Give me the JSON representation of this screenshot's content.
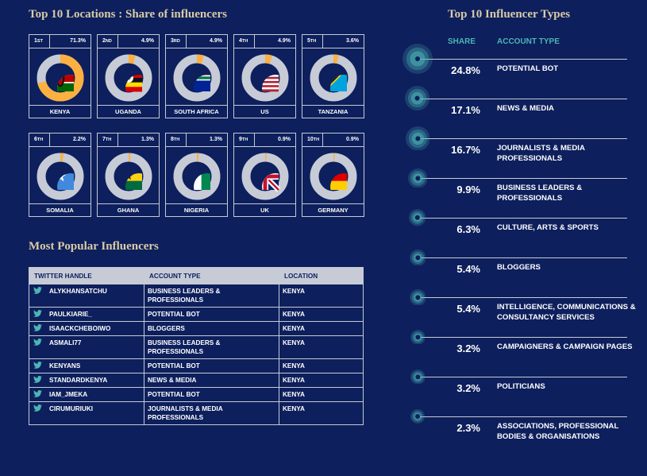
{
  "locations": {
    "title": "Top 10 Locations : Share of influencers",
    "items": [
      {
        "rank": "1",
        "suffix": "ST",
        "name": "KENYA",
        "label": "71.3%",
        "value": 71.3
      },
      {
        "rank": "2",
        "suffix": "ND",
        "name": "UGANDA",
        "label": "4.9%",
        "value": 4.9
      },
      {
        "rank": "3",
        "suffix": "RD",
        "name": "SOUTH AFRICA",
        "label": "4.9%",
        "value": 4.9
      },
      {
        "rank": "4",
        "suffix": "TH",
        "name": "US",
        "label": "4.9%",
        "value": 4.9
      },
      {
        "rank": "5",
        "suffix": "TH",
        "name": "TANZANIA",
        "label": "3.6%",
        "value": 3.6
      },
      {
        "rank": "6",
        "suffix": "TH",
        "name": "SOMALIA",
        "label": "2.2%",
        "value": 2.2
      },
      {
        "rank": "7",
        "suffix": "TH",
        "name": "GHANA",
        "label": "1.3%",
        "value": 1.3
      },
      {
        "rank": "8",
        "suffix": "TH",
        "name": "NIGERIA",
        "label": "1.3%",
        "value": 1.3
      },
      {
        "rank": "9",
        "suffix": "TH",
        "name": "UK",
        "label": "0.9%",
        "value": 0.9
      },
      {
        "rank": "10",
        "suffix": "TH",
        "name": "GERMANY",
        "label": "0.9%",
        "value": 0.9
      }
    ]
  },
  "influencers": {
    "title": "Most Popular Influencers",
    "headers": [
      "TWITTER HANDLE",
      "ACCOUNT TYPE",
      "LOCATION"
    ],
    "rows": [
      {
        "handle": "ALYKHANSATCHU",
        "type": "BUSINESS LEADERS & PROFESSIONALS",
        "location": "KENYA"
      },
      {
        "handle": "PAULKIARIE_",
        "type": "POTENTIAL BOT",
        "location": "KENYA"
      },
      {
        "handle": "ISAACKCHEBOIWO",
        "type": "BLOGGERS",
        "location": "KENYA"
      },
      {
        "handle": "ASMALI77",
        "type": "BUSINESS LEADERS & PROFESSIONALS",
        "location": "KENYA"
      },
      {
        "handle": "KENYANS",
        "type": "POTENTIAL BOT",
        "location": "KENYA"
      },
      {
        "handle": "STANDARDKENYA",
        "type": "NEWS & MEDIA",
        "location": "KENYA"
      },
      {
        "handle": "IAM_JMEKA",
        "type": "POTENTIAL BOT",
        "location": "KENYA"
      },
      {
        "handle": "CIRUMURIUKI",
        "type": "JOURNALISTS & MEDIA PROFESSIONALS",
        "location": "KENYA"
      }
    ]
  },
  "types": {
    "title": "Top 10 Influencer Types",
    "share_header": "SHARE",
    "type_header": "ACCOUNT TYPE"
  },
  "colors": {
    "background": "#0d1f5c",
    "accent": "#fbb040",
    "teal": "#4db5b5",
    "ring": "#c6cbd6",
    "heading": "#d9cba6"
  },
  "chart_data": [
    {
      "type": "pie",
      "title": "Top 10 Locations : Share of influencers",
      "categories": [
        "KENYA",
        "UGANDA",
        "SOUTH AFRICA",
        "US",
        "TANZANIA",
        "SOMALIA",
        "GHANA",
        "NIGERIA",
        "UK",
        "GERMANY"
      ],
      "values": [
        71.3,
        4.9,
        4.9,
        4.9,
        3.6,
        2.2,
        1.3,
        1.3,
        0.9,
        0.9
      ]
    },
    {
      "type": "bar",
      "title": "Top 10 Influencer Types",
      "categories": [
        "Potential Bot",
        "News & Media",
        "Journalists & Media Professionals",
        "Business Leaders & Professionals",
        "Culture, Arts & Sports",
        "Bloggers",
        "Intelligence, Communications & Consultancy Services",
        "Campaigners & Campaign Pages",
        "Politicians",
        "Associations, Professional Bodies & Organisations"
      ],
      "labels": [
        "24.8%",
        "17.1%",
        "16.7%",
        "9.9%",
        "6.3%",
        "5.4%",
        "5.4%",
        "3.2%",
        "3.2%",
        "2.3%"
      ],
      "values": [
        24.8,
        17.1,
        16.7,
        9.9,
        6.3,
        5.4,
        5.4,
        3.2,
        3.2,
        2.3
      ]
    }
  ]
}
